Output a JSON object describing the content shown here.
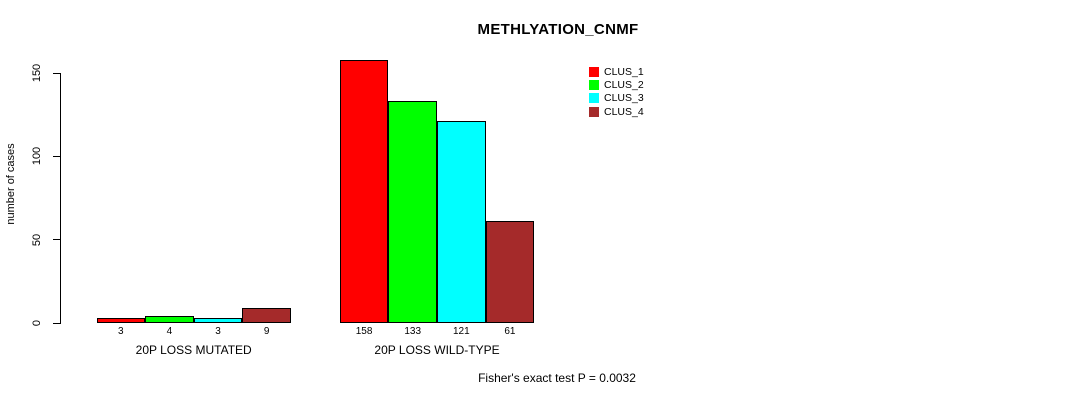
{
  "chart_data": {
    "type": "bar",
    "title": "METHLYATION_CNMF",
    "ylabel": "number of cases",
    "yticks": [
      0,
      50,
      100,
      150
    ],
    "ylim": [
      0,
      160
    ],
    "grid": false,
    "legend_position": "top-right",
    "categories": [
      "20P LOSS MUTATED",
      "20P LOSS WILD-TYPE"
    ],
    "series": [
      {
        "name": "CLUS_1",
        "color": "#ff0000",
        "values": [
          3,
          158
        ]
      },
      {
        "name": "CLUS_2",
        "color": "#00ff00",
        "values": [
          4,
          133
        ]
      },
      {
        "name": "CLUS_3",
        "color": "#00ffff",
        "values": [
          3,
          121
        ]
      },
      {
        "name": "CLUS_4",
        "color": "#a52a2a",
        "values": [
          9,
          61
        ]
      }
    ],
    "annotation": "Fisher's exact test P = 0.0032"
  }
}
